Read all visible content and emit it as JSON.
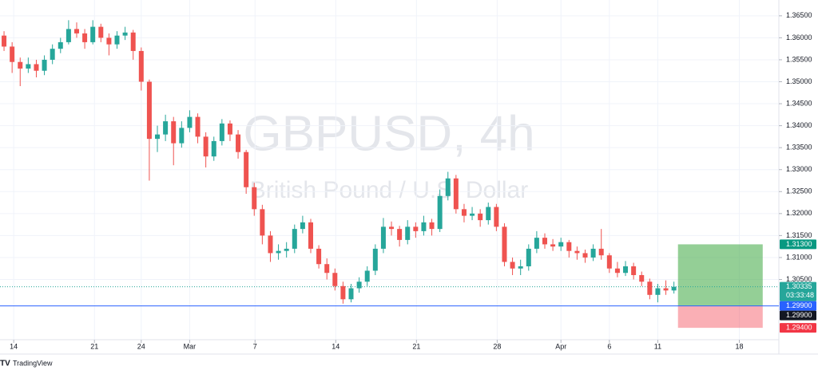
{
  "chart_data": {
    "type": "candlestick",
    "title": "GBPUSD, 4h",
    "subtitle": "British Pound / U.S. Dollar",
    "source": "TradingView",
    "up_color": "#26a69a",
    "down_color": "#ef5350",
    "grid": true,
    "xlim": [
      0,
      96.5
    ],
    "ylim": [
      1.2913,
      1.3686
    ],
    "xticks": [
      {
        "value": 1.7,
        "label": "14"
      },
      {
        "value": 11.7,
        "label": "21"
      },
      {
        "value": 17.5,
        "label": "24"
      },
      {
        "value": 23.5,
        "label": "Mar"
      },
      {
        "value": 31.6,
        "label": "7"
      },
      {
        "value": 41.6,
        "label": "14"
      },
      {
        "value": 51.6,
        "label": "21"
      },
      {
        "value": 61.6,
        "label": "28"
      },
      {
        "value": 69.5,
        "label": "Apr"
      },
      {
        "value": 75.5,
        "label": "6"
      },
      {
        "value": 81.5,
        "label": "11"
      },
      {
        "value": 91.6,
        "label": "18"
      }
    ],
    "yticks": [
      {
        "value": 1.365,
        "label": "1.36500"
      },
      {
        "value": 1.36,
        "label": "1.36000"
      },
      {
        "value": 1.355,
        "label": "1.35500"
      },
      {
        "value": 1.35,
        "label": "1.35000"
      },
      {
        "value": 1.345,
        "label": "1.34500"
      },
      {
        "value": 1.34,
        "label": "1.34000"
      },
      {
        "value": 1.335,
        "label": "1.33500"
      },
      {
        "value": 1.33,
        "label": "1.33000"
      },
      {
        "value": 1.325,
        "label": "1.32500"
      },
      {
        "value": 1.32,
        "label": "1.32000"
      },
      {
        "value": 1.315,
        "label": "1.31500"
      },
      {
        "value": 1.31,
        "label": "1.31000"
      },
      {
        "value": 1.305,
        "label": "1.30500"
      }
    ],
    "ohlc": [
      [
        1.3605,
        1.3615,
        1.357,
        1.358
      ],
      [
        1.358,
        1.359,
        1.352,
        1.3545
      ],
      [
        1.3545,
        1.3555,
        1.349,
        1.353
      ],
      [
        1.353,
        1.3555,
        1.352,
        1.354
      ],
      [
        1.354,
        1.355,
        1.351,
        1.3525
      ],
      [
        1.3525,
        1.356,
        1.3515,
        1.355
      ],
      [
        1.355,
        1.3585,
        1.354,
        1.3575
      ],
      [
        1.3575,
        1.36,
        1.3565,
        1.359
      ],
      [
        1.359,
        1.364,
        1.3585,
        1.362
      ],
      [
        1.362,
        1.3635,
        1.36,
        1.361
      ],
      [
        1.361,
        1.362,
        1.3575,
        1.359
      ],
      [
        1.359,
        1.364,
        1.3585,
        1.3625
      ],
      [
        1.3625,
        1.3632,
        1.359,
        1.36
      ],
      [
        1.36,
        1.361,
        1.356,
        1.3585
      ],
      [
        1.3585,
        1.3615,
        1.3575,
        1.3605
      ],
      [
        1.3605,
        1.3625,
        1.3595,
        1.3612
      ],
      [
        1.3612,
        1.3618,
        1.355,
        1.357
      ],
      [
        1.357,
        1.3578,
        1.348,
        1.35
      ],
      [
        1.35,
        1.3505,
        1.3275,
        1.337
      ],
      [
        1.337,
        1.34,
        1.334,
        1.338
      ],
      [
        1.338,
        1.3425,
        1.3365,
        1.341
      ],
      [
        1.341,
        1.342,
        1.331,
        1.336
      ],
      [
        1.336,
        1.341,
        1.335,
        1.3395
      ],
      [
        1.3395,
        1.3435,
        1.3385,
        1.342
      ],
      [
        1.342,
        1.3428,
        1.336,
        1.3375
      ],
      [
        1.3375,
        1.3385,
        1.3305,
        1.333
      ],
      [
        1.333,
        1.3375,
        1.332,
        1.3365
      ],
      [
        1.3365,
        1.3415,
        1.3355,
        1.3405
      ],
      [
        1.3405,
        1.3412,
        1.3365,
        1.338
      ],
      [
        1.338,
        1.339,
        1.3325,
        1.334
      ],
      [
        1.334,
        1.3345,
        1.3245,
        1.326
      ],
      [
        1.326,
        1.327,
        1.3195,
        1.321
      ],
      [
        1.321,
        1.322,
        1.313,
        1.315
      ],
      [
        1.315,
        1.316,
        1.309,
        1.311
      ],
      [
        1.311,
        1.313,
        1.3095,
        1.3115
      ],
      [
        1.3115,
        1.3135,
        1.31,
        1.312
      ],
      [
        1.312,
        1.3175,
        1.311,
        1.3165
      ],
      [
        1.3165,
        1.3195,
        1.3155,
        1.318
      ],
      [
        1.318,
        1.3188,
        1.311,
        1.312
      ],
      [
        1.312,
        1.3128,
        1.3075,
        1.3085
      ],
      [
        1.3085,
        1.3098,
        1.305,
        1.3065
      ],
      [
        1.3065,
        1.3075,
        1.3025,
        1.3035
      ],
      [
        1.3035,
        1.3045,
        1.2995,
        1.3005
      ],
      [
        1.3005,
        1.304,
        1.2998,
        1.303
      ],
      [
        1.303,
        1.3055,
        1.302,
        1.3045
      ],
      [
        1.3045,
        1.308,
        1.3035,
        1.307
      ],
      [
        1.307,
        1.313,
        1.306,
        1.312
      ],
      [
        1.312,
        1.319,
        1.311,
        1.317
      ],
      [
        1.317,
        1.3182,
        1.315,
        1.3165
      ],
      [
        1.3165,
        1.3172,
        1.3125,
        1.314
      ],
      [
        1.314,
        1.3185,
        1.313,
        1.317
      ],
      [
        1.317,
        1.318,
        1.3145,
        1.316
      ],
      [
        1.316,
        1.3195,
        1.315,
        1.318
      ],
      [
        1.318,
        1.3188,
        1.315,
        1.3165
      ],
      [
        1.3165,
        1.3255,
        1.3158,
        1.324
      ],
      [
        1.324,
        1.3295,
        1.323,
        1.328
      ],
      [
        1.328,
        1.3288,
        1.32,
        1.321
      ],
      [
        1.321,
        1.3222,
        1.318,
        1.3195
      ],
      [
        1.3195,
        1.3215,
        1.3185,
        1.32
      ],
      [
        1.32,
        1.321,
        1.317,
        1.3185
      ],
      [
        1.3185,
        1.3225,
        1.3175,
        1.3215
      ],
      [
        1.3215,
        1.3222,
        1.316,
        1.317
      ],
      [
        1.317,
        1.3178,
        1.308,
        1.309
      ],
      [
        1.309,
        1.31,
        1.306,
        1.3075
      ],
      [
        1.3075,
        1.3095,
        1.306,
        1.308
      ],
      [
        1.308,
        1.313,
        1.307,
        1.312
      ],
      [
        1.312,
        1.316,
        1.311,
        1.3145
      ],
      [
        1.3145,
        1.3155,
        1.312,
        1.313
      ],
      [
        1.313,
        1.3142,
        1.3115,
        1.3125
      ],
      [
        1.3125,
        1.3145,
        1.3115,
        1.3135
      ],
      [
        1.3135,
        1.314,
        1.31,
        1.3115
      ],
      [
        1.3115,
        1.3125,
        1.3095,
        1.311
      ],
      [
        1.311,
        1.3118,
        1.3088,
        1.31
      ],
      [
        1.31,
        1.313,
        1.3092,
        1.312
      ],
      [
        1.312,
        1.3165,
        1.3095,
        1.3105
      ],
      [
        1.3105,
        1.311,
        1.3065,
        1.3075
      ],
      [
        1.3075,
        1.309,
        1.3055,
        1.3065
      ],
      [
        1.3065,
        1.3092,
        1.3058,
        1.308
      ],
      [
        1.308,
        1.3088,
        1.305,
        1.306
      ],
      [
        1.306,
        1.3068,
        1.3035,
        1.3045
      ],
      [
        1.3045,
        1.3052,
        1.3005,
        1.3015
      ],
      [
        1.3015,
        1.304,
        1.2998,
        1.303
      ],
      [
        1.303,
        1.3048,
        1.3015,
        1.3025
      ],
      [
        1.3025,
        1.3045,
        1.3018,
        1.30335
      ]
    ],
    "countdown": "03:33:48",
    "price_line": {
      "value": 1.299,
      "label": "1.29900",
      "color": "#2962ff"
    },
    "position": {
      "x_range": [
        84,
        94.5
      ],
      "take_profit": {
        "value": 1.313,
        "label": "1.31300"
      },
      "entry": {
        "value": 1.299,
        "label": "1.29900"
      },
      "stop_loss": {
        "value": 1.294,
        "label": "1.29400"
      }
    }
  }
}
